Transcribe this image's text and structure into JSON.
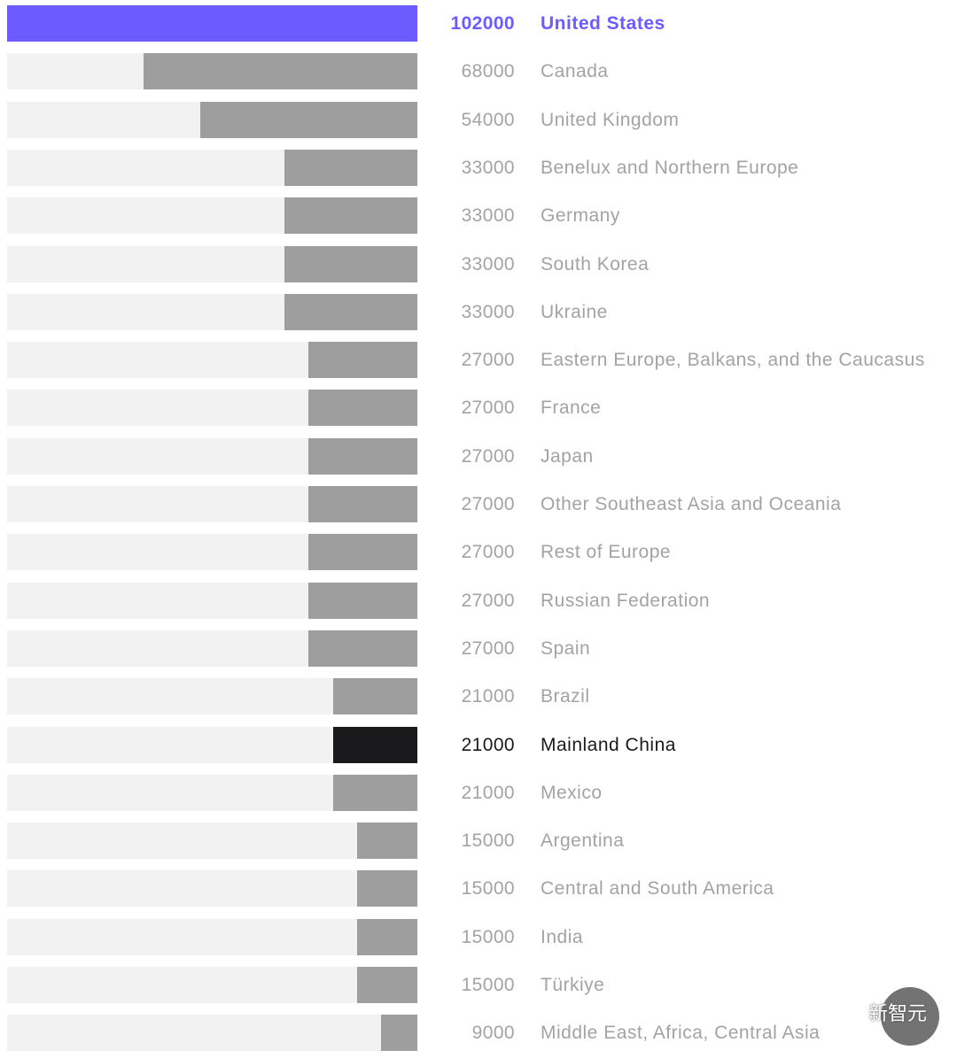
{
  "colors": {
    "highlight": "#6c5cff",
    "special": "#1a1a1c",
    "default_bar": "#9e9e9e",
    "track": "#f2f2f2",
    "muted_text": "#a3a3a3",
    "dark_text": "#1a1a1a"
  },
  "chart_data": {
    "type": "bar",
    "orientation": "horizontal",
    "direction": "right-to-left",
    "xlim": [
      0,
      102000
    ],
    "title": "",
    "xlabel": "",
    "ylabel": "",
    "categories": [
      "United States",
      "Canada",
      "United Kingdom",
      "Benelux and Northern Europe",
      "Germany",
      "South Korea",
      "Ukraine",
      "Eastern Europe, Balkans, and the Caucasus",
      "France",
      "Japan",
      "Other Southeast Asia and Oceania",
      "Rest of Europe",
      "Russian Federation",
      "Spain",
      "Brazil",
      "Mainland China",
      "Mexico",
      "Argentina",
      "Central and South America",
      "India",
      "Türkiye",
      "Middle East, Africa, Central Asia"
    ],
    "values": [
      102000,
      68000,
      54000,
      33000,
      33000,
      33000,
      33000,
      27000,
      27000,
      27000,
      27000,
      27000,
      27000,
      27000,
      21000,
      21000,
      21000,
      15000,
      15000,
      15000,
      15000,
      9000
    ],
    "value_labels": [
      "102000",
      "68000",
      "54000",
      "33000",
      "33000",
      "33000",
      "33000",
      "27000",
      "27000",
      "27000",
      "27000",
      "27000",
      "27000",
      "27000",
      "21000",
      "21000",
      "21000",
      "15000",
      "15000",
      "15000",
      "15000",
      "9000"
    ],
    "highlight": {
      "United States": "highlight",
      "Mainland China": "special"
    }
  },
  "watermark": {
    "text": "新智元",
    "icon": "wechat-icon"
  }
}
